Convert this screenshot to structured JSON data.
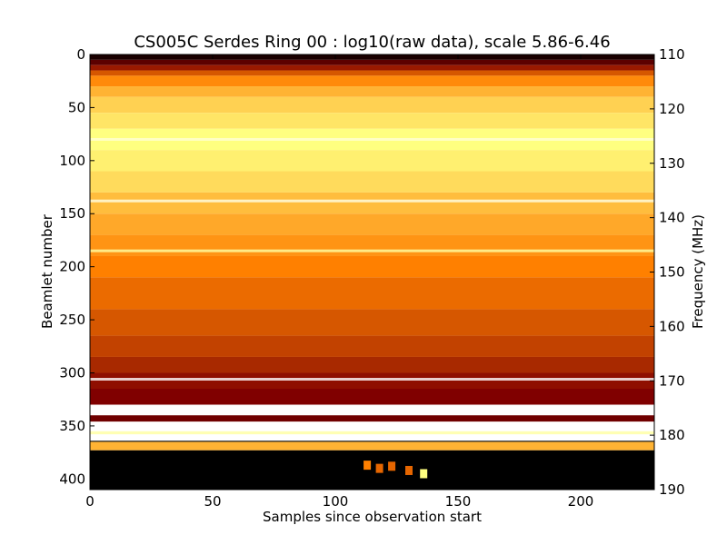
{
  "chart_data": {
    "type": "heatmap",
    "title": "CS005C Serdes Ring 00 : log10(raw data), scale 5.86-6.46",
    "xlabel": "Samples since observation start",
    "ylabel_left": "Beamlet number",
    "ylabel_right": "Frequency (MHz)",
    "xlim": [
      0,
      230
    ],
    "ylim_left": [
      0,
      410
    ],
    "ylim_right": [
      110,
      190
    ],
    "y_inverted": true,
    "colormap": "afmhot",
    "color_scale": [
      5.86,
      6.46
    ],
    "x_ticks": [
      0,
      50,
      100,
      150,
      200
    ],
    "y_ticks_left": [
      0,
      50,
      100,
      150,
      200,
      250,
      300,
      350,
      400
    ],
    "y_ticks_right": [
      110,
      120,
      130,
      140,
      150,
      160,
      170,
      180,
      190
    ],
    "grid": false,
    "row_bands": [
      {
        "from": 0,
        "to": 5,
        "level": 0.05
      },
      {
        "from": 5,
        "to": 10,
        "level": 0.18
      },
      {
        "from": 10,
        "to": 15,
        "level": 0.3
      },
      {
        "from": 15,
        "to": 20,
        "level": 0.42
      },
      {
        "from": 20,
        "to": 30,
        "level": 0.52
      },
      {
        "from": 30,
        "to": 40,
        "level": 0.6
      },
      {
        "from": 40,
        "to": 55,
        "level": 0.66
      },
      {
        "from": 55,
        "to": 70,
        "level": 0.7
      },
      {
        "from": 70,
        "to": 90,
        "level": 0.75
      },
      {
        "from": 90,
        "to": 110,
        "level": 0.72
      },
      {
        "from": 110,
        "to": 130,
        "level": 0.68
      },
      {
        "from": 130,
        "to": 150,
        "level": 0.62
      },
      {
        "from": 150,
        "to": 170,
        "level": 0.58
      },
      {
        "from": 170,
        "to": 190,
        "level": 0.54
      },
      {
        "from": 190,
        "to": 210,
        "level": 0.5
      },
      {
        "from": 210,
        "to": 240,
        "level": 0.46
      },
      {
        "from": 240,
        "to": 265,
        "level": 0.42
      },
      {
        "from": 265,
        "to": 285,
        "level": 0.38
      },
      {
        "from": 285,
        "to": 300,
        "level": 0.33
      },
      {
        "from": 300,
        "to": 315,
        "level": 0.28
      },
      {
        "from": 315,
        "to": 330,
        "level": 0.25
      },
      {
        "from": 330,
        "to": 340,
        "level": 1.0
      },
      {
        "from": 340,
        "to": 346,
        "level": 0.22
      },
      {
        "from": 346,
        "to": 355,
        "level": 1.0
      },
      {
        "from": 355,
        "to": 358,
        "level": 0.85
      },
      {
        "from": 358,
        "to": 364,
        "level": 1.0
      },
      {
        "from": 364,
        "to": 365,
        "level": 0.0
      },
      {
        "from": 365,
        "to": 373,
        "level": 0.6
      },
      {
        "from": 373,
        "to": 410,
        "level": 0.0
      }
    ],
    "bright_lines": [
      {
        "beamlet": 80,
        "level": 0.92
      },
      {
        "beamlet": 138,
        "level": 0.95
      },
      {
        "beamlet": 185,
        "level": 0.82
      },
      {
        "beamlet": 306,
        "level": 1.0
      }
    ],
    "hot_spots": [
      {
        "x": 113,
        "beamlet": 387,
        "level": 0.5
      },
      {
        "x": 118,
        "beamlet": 390,
        "level": 0.45
      },
      {
        "x": 123,
        "beamlet": 388,
        "level": 0.45
      },
      {
        "x": 130,
        "beamlet": 392,
        "level": 0.45
      },
      {
        "x": 136,
        "beamlet": 395,
        "level": 0.75
      }
    ]
  }
}
